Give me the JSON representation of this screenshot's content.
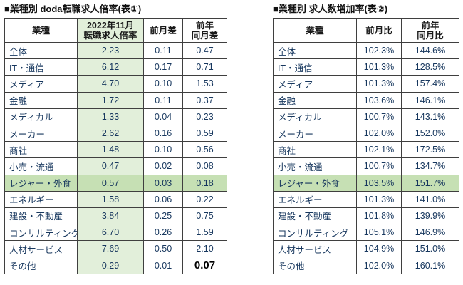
{
  "chart_data": [
    {
      "type": "table",
      "title": "■業種別 doda転職求人倍率(表①)",
      "headers": [
        "業種",
        "2022年11月\n転職求人倍率",
        "前月差",
        "前年\n同月差"
      ],
      "green_col_index": 1,
      "highlight_row_index": 8,
      "emphasis_cell": {
        "row": 13,
        "col": 3
      },
      "rows": [
        [
          "全体",
          "2.23",
          "0.11",
          "0.47"
        ],
        [
          "IT・通信",
          "6.12",
          "0.17",
          "0.71"
        ],
        [
          "メディア",
          "4.70",
          "0.10",
          "1.53"
        ],
        [
          "金融",
          "1.72",
          "0.11",
          "0.37"
        ],
        [
          "メディカル",
          "1.33",
          "0.04",
          "0.23"
        ],
        [
          "メーカー",
          "2.62",
          "0.16",
          "0.59"
        ],
        [
          "商社",
          "1.48",
          "0.10",
          "0.56"
        ],
        [
          "小売・流通",
          "0.47",
          "0.02",
          "0.08"
        ],
        [
          "レジャー・外食",
          "0.57",
          "0.03",
          "0.18"
        ],
        [
          "エネルギー",
          "1.58",
          "0.06",
          "0.22"
        ],
        [
          "建設・不動産",
          "3.84",
          "0.25",
          "0.75"
        ],
        [
          "コンサルティング",
          "6.70",
          "0.26",
          "1.59"
        ],
        [
          "人材サービス",
          "7.69",
          "0.50",
          "2.10"
        ],
        [
          "その他",
          "0.29",
          "0.01",
          "0.07"
        ]
      ]
    },
    {
      "type": "table",
      "title": "■業種別 求人数増加率(表②)",
      "headers": [
        "業種",
        "前月比",
        "前年\n同月比"
      ],
      "green_col_index": -1,
      "highlight_row_index": 8,
      "emphasis_cell": null,
      "rows": [
        [
          "全体",
          "102.3%",
          "144.6%"
        ],
        [
          "IT・通信",
          "101.3%",
          "128.5%"
        ],
        [
          "メディア",
          "101.3%",
          "157.4%"
        ],
        [
          "金融",
          "103.6%",
          "146.1%"
        ],
        [
          "メディカル",
          "100.7%",
          "143.1%"
        ],
        [
          "メーカー",
          "102.0%",
          "152.0%"
        ],
        [
          "商社",
          "102.1%",
          "172.5%"
        ],
        [
          "小売・流通",
          "100.7%",
          "134.7%"
        ],
        [
          "レジャー・外食",
          "103.5%",
          "151.7%"
        ],
        [
          "エネルギー",
          "101.3%",
          "141.0%"
        ],
        [
          "建設・不動産",
          "101.8%",
          "139.9%"
        ],
        [
          "コンサルティング",
          "105.1%",
          "146.9%"
        ],
        [
          "人材サービス",
          "104.9%",
          "151.0%"
        ],
        [
          "その他",
          "102.0%",
          "160.1%"
        ]
      ]
    },
    {
      "colors": {
        "green_column_bg": "#e2efda",
        "highlight_row_bg": "#c6e0b4",
        "number_text": "#17375e",
        "border": "#3f3f3f"
      }
    }
  ]
}
